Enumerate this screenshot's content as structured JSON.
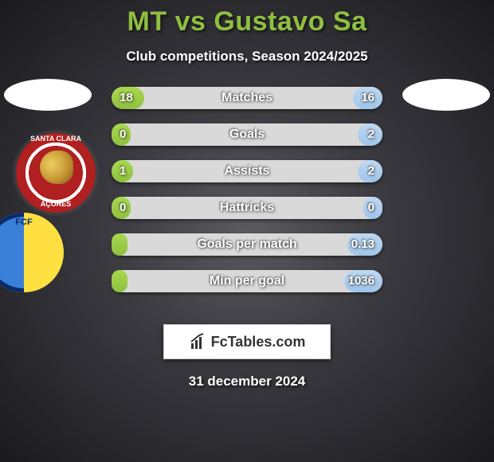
{
  "title": {
    "player1": "MT",
    "vs": "vs",
    "player2": "Gustavo Sa"
  },
  "title_colors": {
    "p1": "#8fbf3f",
    "vs": "#8fbf3f",
    "p2": "#8fbf3f"
  },
  "subtitle": "Club competitions, Season 2024/2025",
  "footer_brand": "FcTables.com",
  "date": "31 december 2024",
  "player_colors": {
    "p1": "#8fbf3f",
    "p2": "#9fc5ea"
  },
  "bar_bg_color": "#d9d9d9",
  "club1": {
    "name": "Santa Clara",
    "top_text": "SANTA CLARA",
    "bottom_text": "AÇORES"
  },
  "club2": {
    "name": "FCF",
    "top_text": "FCF"
  },
  "stats": [
    {
      "label": "Matches",
      "p1_value": "18",
      "p2_value": "16",
      "p1_pct": 12,
      "p2_pct": 11
    },
    {
      "label": "Goals",
      "p1_value": "0",
      "p2_value": "2",
      "p1_pct": 7,
      "p2_pct": 9
    },
    {
      "label": "Assists",
      "p1_value": "1",
      "p2_value": "2",
      "p1_pct": 8,
      "p2_pct": 9
    },
    {
      "label": "Hattricks",
      "p1_value": "0",
      "p2_value": "0",
      "p1_pct": 7,
      "p2_pct": 7
    },
    {
      "label": "Goals per match",
      "p1_value": "",
      "p2_value": "0.13",
      "p1_pct": 6,
      "p2_pct": 13
    },
    {
      "label": "Min per goal",
      "p1_value": "",
      "p2_value": "1036",
      "p1_pct": 6,
      "p2_pct": 14
    }
  ]
}
